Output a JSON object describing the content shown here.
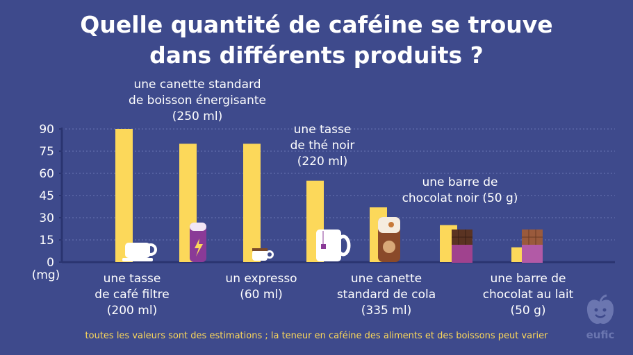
{
  "title_line1": "Quelle quantité de caféine se trouve",
  "title_line2": "dans différents produits ?",
  "footnote": "toutes les valeurs sont des estimations ; la teneur en caféine des aliments et des boissons peut varier",
  "logo_text": "eufic",
  "colors": {
    "background": "#3e4a8c",
    "bar": "#fcd85a",
    "grid": "#6a76b3",
    "text": "#ffffff",
    "footnote": "#fcd85a"
  },
  "chart_data": {
    "type": "bar",
    "ylabel": "(mg)",
    "ylim": [
      0,
      90
    ],
    "yticks": [
      0,
      15,
      30,
      45,
      60,
      75,
      90
    ],
    "grid": true,
    "categories": [
      [
        "une tasse",
        "de café filtre",
        "(200 ml)"
      ],
      [
        "une canette standard",
        "de boisson énergisante",
        "(250 ml)"
      ],
      [
        "un expresso",
        "(60 ml)"
      ],
      [
        "une tasse",
        "de thé noir",
        "(220 ml)"
      ],
      [
        "une canette",
        "standard de cola",
        "(335 ml)"
      ],
      [
        "une barre de",
        "chocolat noir (50 g)"
      ],
      [
        "une barre de",
        "chocolat au lait",
        "(50 g)"
      ]
    ],
    "values": [
      90,
      80,
      80,
      55,
      37,
      25,
      10
    ],
    "icons": [
      "coffee-cup-icon",
      "energy-drink-can-icon",
      "espresso-cup-icon",
      "tea-mug-icon",
      "cola-can-icon",
      "dark-chocolate-bar-icon",
      "milk-chocolate-bar-icon"
    ]
  }
}
